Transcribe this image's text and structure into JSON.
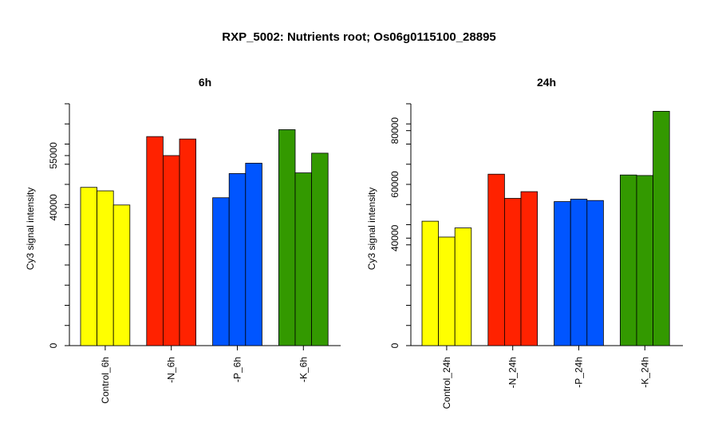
{
  "title": "RXP_5002: Nutrients root; Os06g0115100_28895",
  "chart_data": [
    {
      "type": "bar",
      "title": "6h",
      "ylabel": "Cy3 signal intensity",
      "ylim": [
        0,
        70000
      ],
      "yticks": [
        0,
        40000,
        55000
      ],
      "ytick_labels": [
        "0",
        "40000",
        "55000"
      ],
      "groups": [
        "Control_6h",
        "-N_6h",
        "-P_6h",
        "-K_6h"
      ],
      "group_colors": [
        "#ffff00",
        "#ff2200",
        "#0055ff",
        "#339900"
      ],
      "values": [
        [
          45800,
          44800,
          40700
        ],
        [
          60500,
          55000,
          59800
        ],
        [
          42800,
          49800,
          52800
        ],
        [
          62500,
          50000,
          55700
        ]
      ]
    },
    {
      "type": "bar",
      "title": "24h",
      "ylabel": "Cy3 signal intensity",
      "ylim": [
        0,
        90000
      ],
      "yticks": [
        0,
        40000,
        60000,
        80000
      ],
      "ytick_labels": [
        "0",
        "40000",
        "60000",
        "80000"
      ],
      "groups": [
        "Control_24h",
        "-N_24h",
        "-P_24h",
        "-K_24h"
      ],
      "group_colors": [
        "#ffff00",
        "#ff2200",
        "#0055ff",
        "#339900"
      ],
      "values": [
        [
          46300,
          40400,
          43800
        ],
        [
          63800,
          54800,
          57300
        ],
        [
          53600,
          54500,
          54000
        ],
        [
          63500,
          63300,
          87200
        ]
      ]
    }
  ]
}
